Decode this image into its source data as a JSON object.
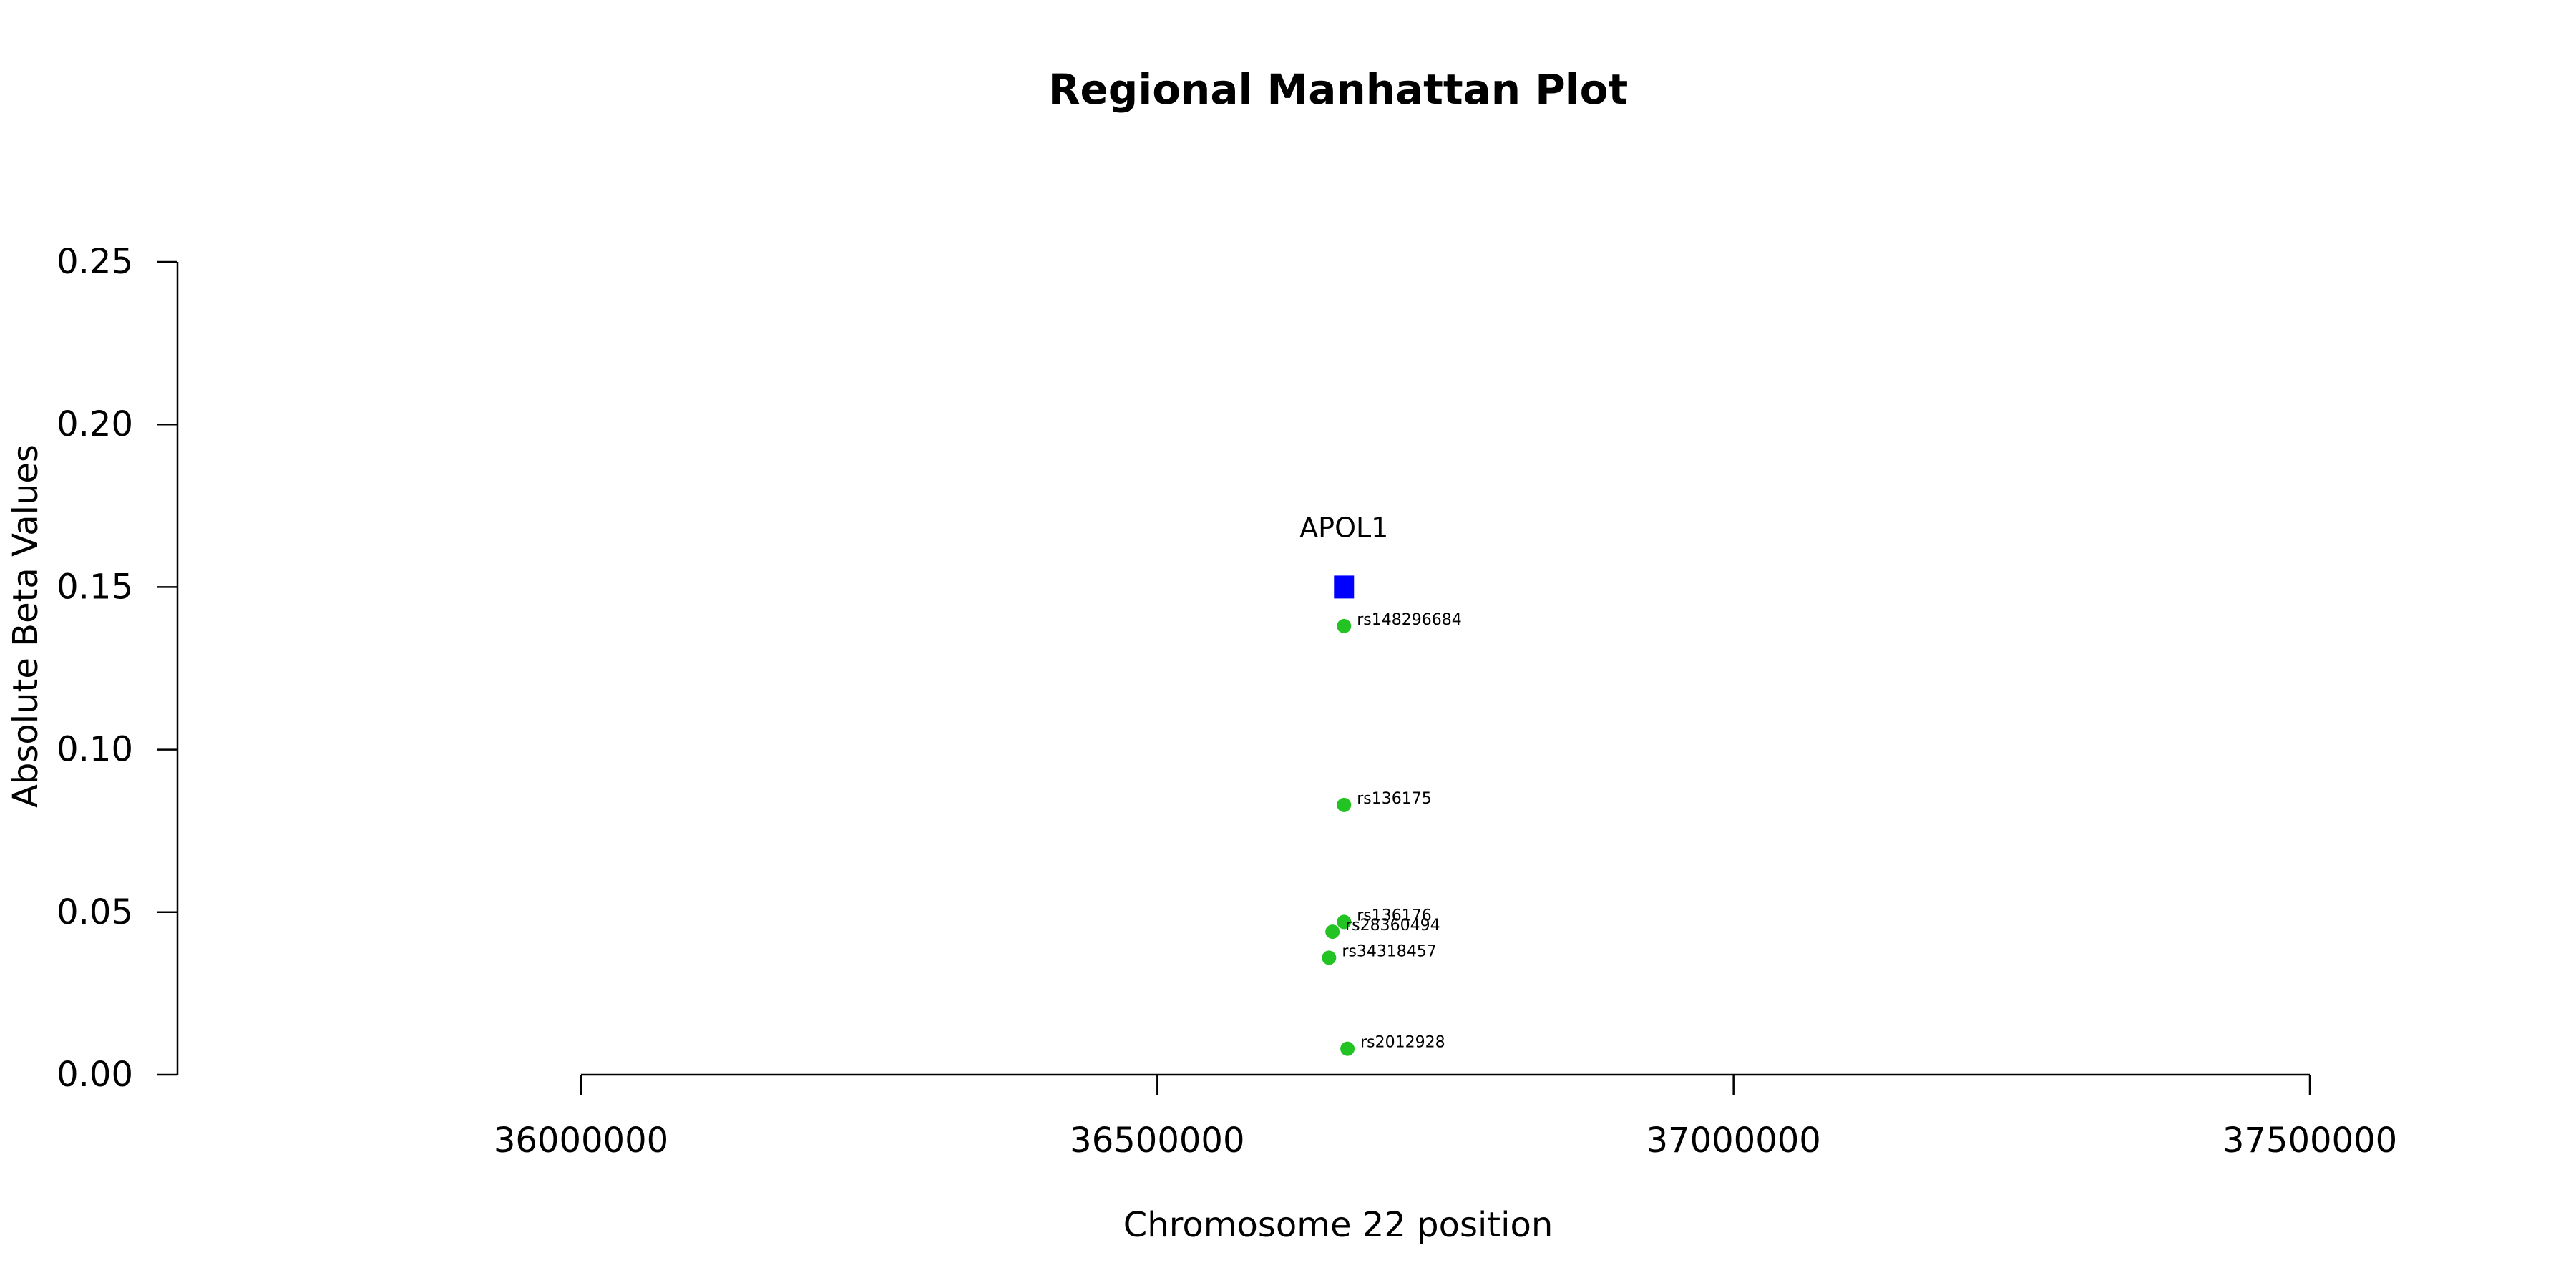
{
  "chart_data": {
    "type": "scatter",
    "title": "Regional Manhattan Plot",
    "xlabel": "Chromosome 22 position",
    "ylabel": "Absolute Beta Values",
    "xlim": [
      36000000,
      37500000
    ],
    "ylim": [
      0,
      0.25
    ],
    "x_ticks": [
      "36000000",
      "36500000",
      "37000000",
      "37500000"
    ],
    "y_ticks": [
      "0.00",
      "0.05",
      "0.10",
      "0.15",
      "0.20",
      "0.25"
    ],
    "grid": false,
    "legend": "none",
    "genes": [
      {
        "name": "APOL1",
        "x": 36662000,
        "y": 0.15,
        "color": "#0000ff"
      }
    ],
    "snp_color": "#22c322",
    "snps": [
      {
        "name": "rs148296684",
        "x": 36662000,
        "y": 0.138
      },
      {
        "name": "rs136175",
        "x": 36662000,
        "y": 0.083
      },
      {
        "name": "rs136176",
        "x": 36662000,
        "y": 0.047
      },
      {
        "name": "rs28360494",
        "x": 36652000,
        "y": 0.044
      },
      {
        "name": "rs34318457",
        "x": 36649000,
        "y": 0.036
      },
      {
        "name": "rs2012928",
        "x": 36665000,
        "y": 0.008
      }
    ]
  }
}
